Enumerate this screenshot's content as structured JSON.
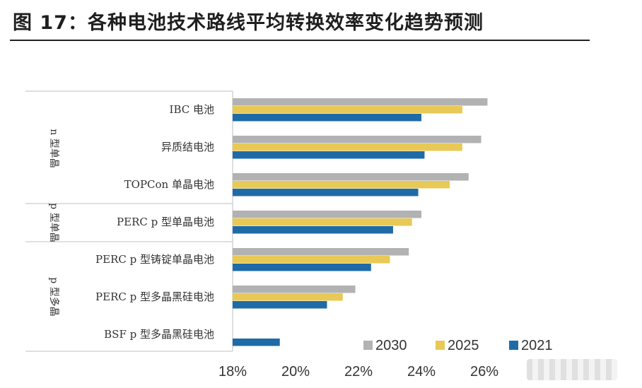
{
  "title": "图 17：各种电池技术路线平均转换效率变化趋势预测",
  "chart_data": {
    "type": "bar",
    "orientation": "horizontal",
    "xlim": [
      18,
      26.9
    ],
    "x_ticks": [
      "18%",
      "20%",
      "22%",
      "24%",
      "26%"
    ],
    "x_tick_values": [
      18,
      20,
      22,
      24,
      26
    ],
    "grid": false,
    "legend_position": "bottom-right",
    "categories": [
      "IBC 电池",
      "异质结电池",
      "TOPCon 单晶电池",
      "PERC p 型单晶电池",
      "PERC p 型铸锭单晶电池",
      "PERC p 型多晶黑硅电池",
      "BSF p 型多晶黑硅电池"
    ],
    "groups": [
      {
        "label": "n 型单晶",
        "categories": [
          0,
          1,
          2
        ]
      },
      {
        "label": "p 型单晶",
        "categories": [
          3
        ]
      },
      {
        "label": "p 型多晶",
        "categories": [
          4,
          5,
          6
        ]
      }
    ],
    "series": [
      {
        "name": "2030",
        "color": "#B2B2B2",
        "values": [
          26.1,
          25.9,
          25.5,
          24.0,
          23.6,
          21.9,
          null
        ]
      },
      {
        "name": "2025",
        "color": "#E8C956",
        "values": [
          25.3,
          25.3,
          24.9,
          23.7,
          23.0,
          21.5,
          null
        ]
      },
      {
        "name": "2021",
        "color": "#1F6BA8",
        "values": [
          24.0,
          24.1,
          23.9,
          23.1,
          22.4,
          21.0,
          19.5
        ]
      }
    ]
  }
}
